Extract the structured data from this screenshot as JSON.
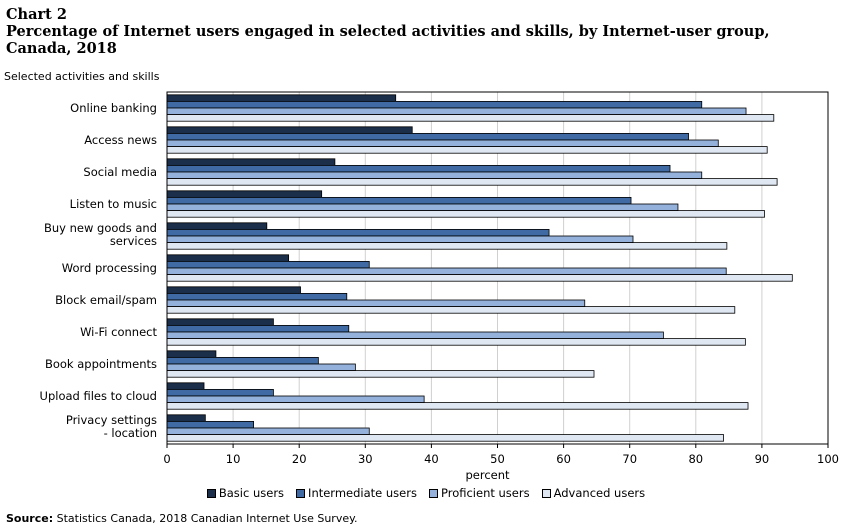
{
  "header": {
    "chart_label": "Chart 2",
    "title": "Percentage of Internet users engaged in selected activities and skills, by Internet-user group, Canada, 2018"
  },
  "footer": {
    "source_label": "Source:",
    "source_text": "Statistics Canada, 2018 Canadian Internet Use Survey."
  },
  "chart_data": {
    "type": "bar",
    "orientation": "horizontal",
    "ylabel": "Selected activities and skills",
    "xlabel": "percent",
    "xlim": [
      0,
      100
    ],
    "x_ticks": [
      0,
      10,
      20,
      30,
      40,
      50,
      60,
      70,
      80,
      90,
      100
    ],
    "grid": true,
    "legend_position": "bottom",
    "categories": [
      "Online banking",
      "Access news",
      "Social media",
      "Listen to music",
      "Buy new goods and services",
      "Word processing",
      "Block email/spam",
      "Wi-Fi connect",
      "Book appointments",
      "Upload files to cloud",
      "Privacy settings - location"
    ],
    "series": [
      {
        "name": "Basic users",
        "color": "#1b2e4a",
        "values": [
          34.6,
          37.1,
          25.4,
          23.4,
          15.1,
          18.4,
          20.2,
          16.1,
          7.4,
          5.6,
          5.8
        ]
      },
      {
        "name": "Intermediate users",
        "color": "#3f6aa3",
        "values": [
          80.9,
          78.9,
          76.1,
          70.2,
          57.8,
          30.6,
          27.2,
          27.5,
          22.9,
          16.1,
          13.1
        ]
      },
      {
        "name": "Proficient users",
        "color": "#93b1da",
        "values": [
          87.6,
          83.4,
          80.9,
          77.3,
          70.5,
          84.6,
          63.2,
          75.1,
          28.5,
          38.9,
          30.6
        ]
      },
      {
        "name": "Advanced users",
        "color": "#dfe7f3",
        "values": [
          91.8,
          90.8,
          92.3,
          90.4,
          84.7,
          94.6,
          85.9,
          87.5,
          64.6,
          87.9,
          84.2
        ]
      }
    ]
  }
}
